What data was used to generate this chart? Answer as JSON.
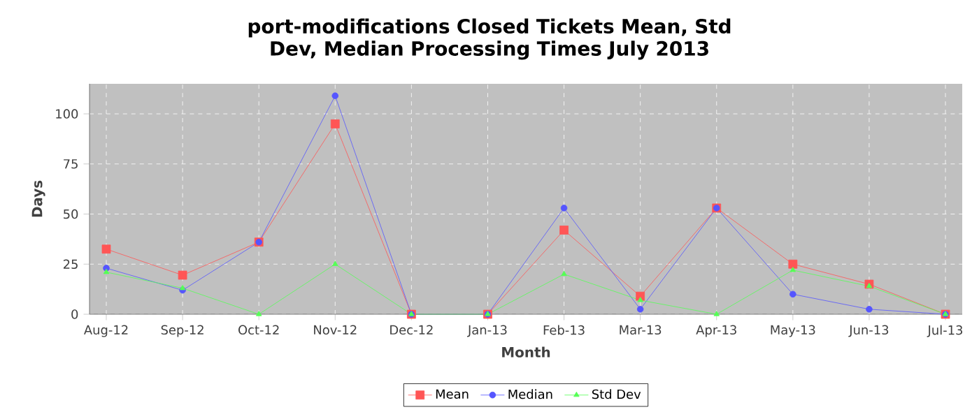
{
  "chart_data": {
    "type": "line",
    "title": "port-modifications Closed Tickets Mean, Std Dev, Median Processing Times July 2013",
    "xlabel": "Month",
    "ylabel": "Days",
    "categories": [
      "Aug-12",
      "Sep-12",
      "Oct-12",
      "Nov-12",
      "Dec-12",
      "Jan-13",
      "Feb-13",
      "Mar-13",
      "Apr-13",
      "May-13",
      "Jun-13",
      "Jul-13"
    ],
    "series": [
      {
        "name": "Mean",
        "color": "#ff5555",
        "marker": "square",
        "values": [
          32.5,
          19.5,
          36,
          95,
          0,
          0,
          42,
          9,
          53,
          25,
          15,
          0
        ]
      },
      {
        "name": "Median",
        "color": "#5555ff",
        "marker": "circle",
        "values": [
          23,
          12,
          36,
          109,
          0,
          0,
          53,
          2.5,
          53,
          10,
          2.5,
          0
        ]
      },
      {
        "name": "Std Dev",
        "color": "#55ff55",
        "marker": "triangle",
        "values": [
          21,
          13,
          0,
          25,
          0,
          0,
          20,
          7,
          0,
          22,
          14,
          0
        ]
      }
    ],
    "ylim": [
      0,
      115
    ],
    "yticks": [
      0,
      25,
      50,
      75,
      100
    ],
    "grid": true,
    "legend": "bottom",
    "line_style": "solid"
  }
}
